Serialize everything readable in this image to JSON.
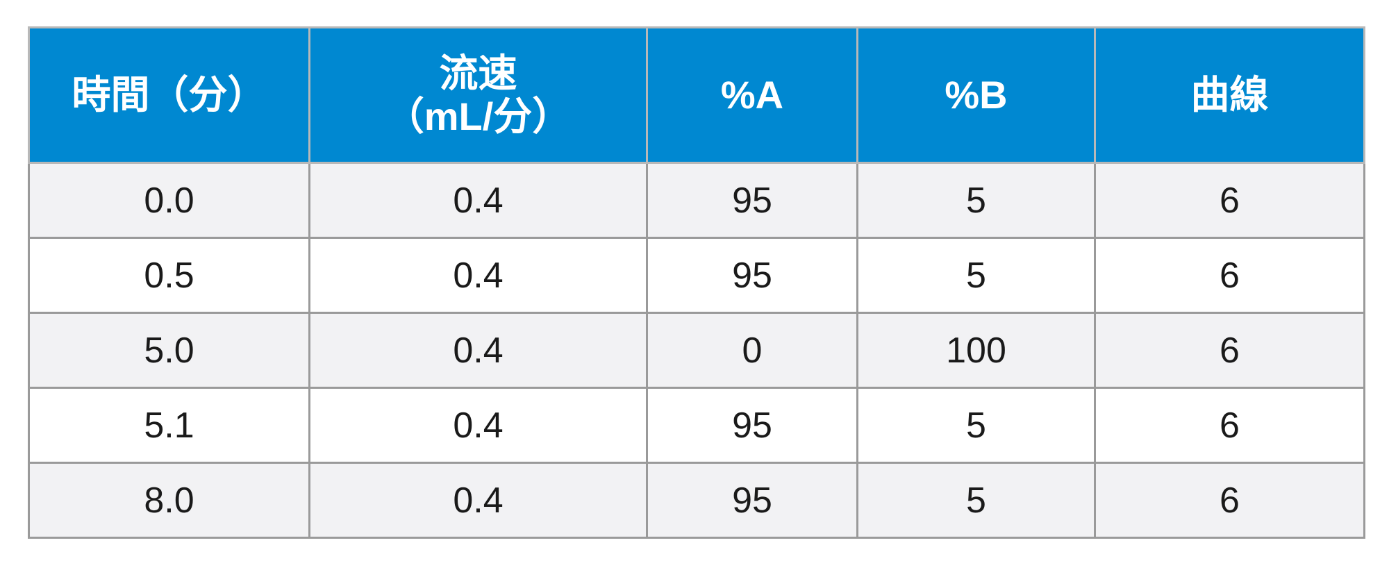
{
  "table": {
    "header": [
      "時間（分）",
      "流速\n（mL/分）",
      "%A",
      "%B",
      "曲線"
    ],
    "rows": [
      [
        "0.0",
        "0.4",
        "95",
        "5",
        "6"
      ],
      [
        "0.5",
        "0.4",
        "95",
        "5",
        "6"
      ],
      [
        "5.0",
        "0.4",
        "0",
        "100",
        "6"
      ],
      [
        "5.1",
        "0.4",
        "95",
        "5",
        "6"
      ],
      [
        "8.0",
        "0.4",
        "95",
        "5",
        "6"
      ]
    ]
  }
}
